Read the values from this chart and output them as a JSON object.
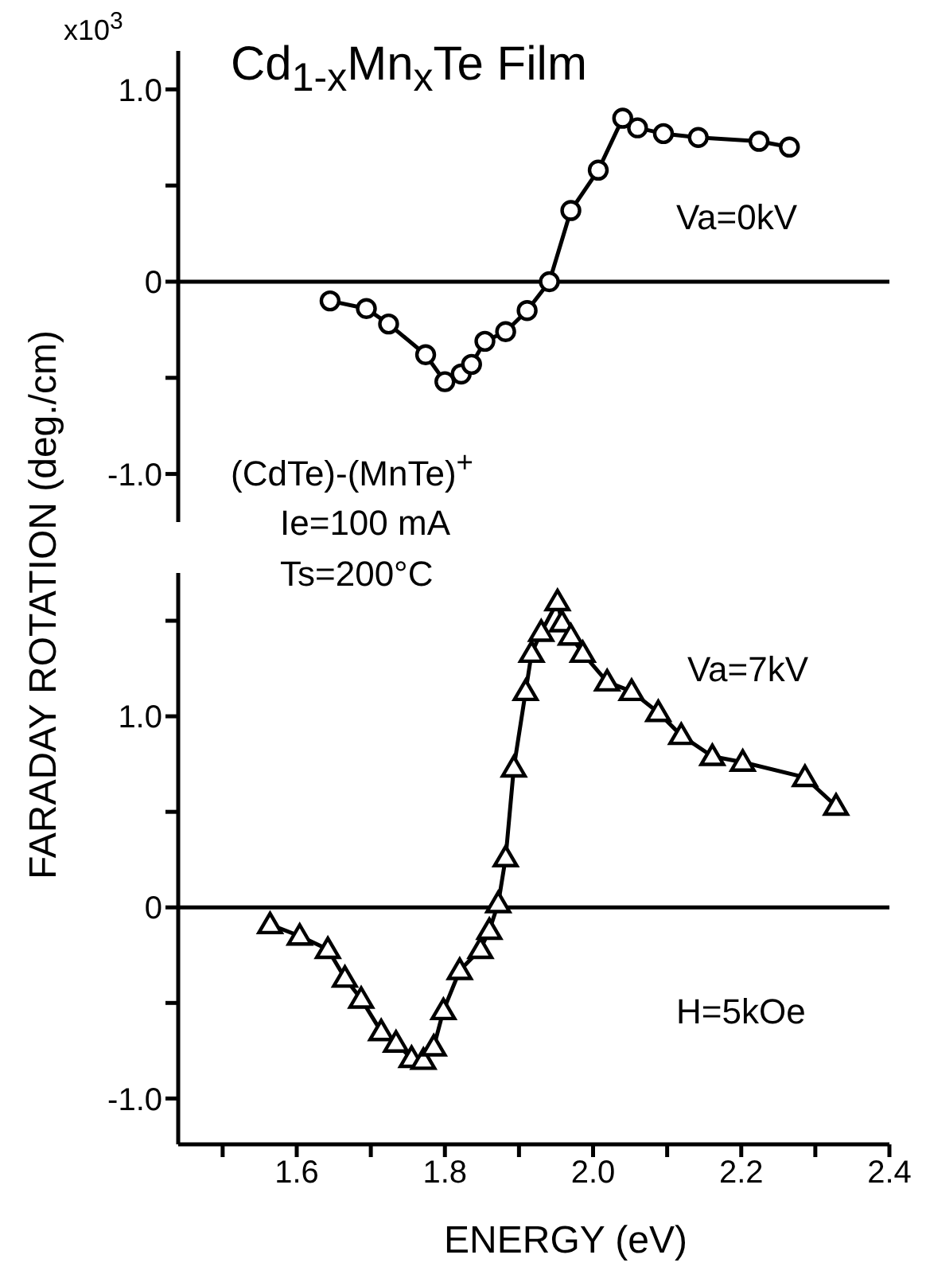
{
  "chart_data": [
    {
      "type": "line",
      "title": "Cd$_{1-x}$Mn$_{x}$Te Film",
      "annotations": [
        "x10$^{3}$",
        "(CdTe)-(MnTe)$^{+}$",
        "Ie=100 mA",
        "Ts=200°C"
      ],
      "xlim": [
        1.44,
        2.4
      ],
      "ylim": [
        -1.25,
        1.2
      ],
      "yticks": [
        {
          "value": 1,
          "label": "1.0"
        },
        {
          "value": 0.5,
          "label": null
        },
        0,
        {
          "value": -0.5,
          "label": null
        },
        {
          "value": -1,
          "label": "-1.0"
        }
      ],
      "tick_labels": "y",
      "grid": false,
      "legend": false,
      "marker": "circle",
      "line_style": "solid",
      "ref_lines": [
        {
          "axis": "y",
          "value": 0
        }
      ],
      "series": [
        {
          "name": "Va=0kV",
          "color": "#000000",
          "x": [
            1.645,
            1.694,
            1.724,
            1.774,
            1.8,
            1.822,
            1.836,
            1.854,
            1.882,
            1.911,
            1.941,
            1.97,
            2.007,
            2.04,
            2.06,
            2.095,
            2.142,
            2.224,
            2.265
          ],
          "values": [
            -0.1,
            -0.14,
            -0.22,
            -0.38,
            -0.52,
            -0.48,
            -0.43,
            -0.31,
            -0.26,
            -0.15,
            0.0,
            0.37,
            0.58,
            0.85,
            0.8,
            0.77,
            0.75,
            0.73,
            0.7
          ]
        }
      ]
    },
    {
      "type": "line",
      "xlabel": "ENERGY (eV)",
      "ylabel": "FARADAY ROTATION (deg./cm)",
      "annotations": [
        "H=5kOe"
      ],
      "xlim": [
        1.44,
        2.4
      ],
      "xticks": [
        {
          "value": 1.5,
          "label": null
        },
        1.6,
        {
          "value": 1.7,
          "label": null
        },
        1.8,
        {
          "value": 1.9,
          "label": null
        },
        {
          "value": 2,
          "label": "2.0"
        },
        {
          "value": 2.1,
          "label": null
        },
        2.2,
        {
          "value": 2.3,
          "label": null
        },
        2.4
      ],
      "ylim": [
        -1.24,
        1.75
      ],
      "yticks": [
        {
          "value": 1.5,
          "label": null
        },
        {
          "value": 1,
          "label": "1.0"
        },
        {
          "value": 0.5,
          "label": null
        },
        0,
        {
          "value": -0.5,
          "label": null
        },
        {
          "value": -1,
          "label": "-1.0"
        }
      ],
      "grid": false,
      "legend": false,
      "marker": "triangle",
      "line_style": "solid",
      "ref_lines": [
        {
          "axis": "y",
          "value": 0
        }
      ],
      "series": [
        {
          "name": "Va=7kV",
          "color": "#000000",
          "x": [
            1.564,
            1.604,
            1.642,
            1.665,
            1.687,
            1.714,
            1.734,
            1.755,
            1.771,
            1.785,
            1.798,
            1.82,
            1.848,
            1.86,
            1.872,
            1.882,
            1.893,
            1.909,
            1.917,
            1.93,
            1.952,
            1.958,
            1.97,
            1.986,
            2.019,
            2.052,
            2.088,
            2.119,
            2.161,
            2.202,
            2.286,
            2.328
          ],
          "values": [
            -0.09,
            -0.15,
            -0.22,
            -0.37,
            -0.48,
            -0.65,
            -0.71,
            -0.79,
            -0.8,
            -0.73,
            -0.54,
            -0.33,
            -0.22,
            -0.12,
            0.02,
            0.26,
            0.73,
            1.13,
            1.33,
            1.44,
            1.6,
            1.49,
            1.42,
            1.33,
            1.18,
            1.13,
            1.02,
            0.9,
            0.79,
            0.76,
            0.68,
            0.53
          ]
        }
      ]
    }
  ]
}
